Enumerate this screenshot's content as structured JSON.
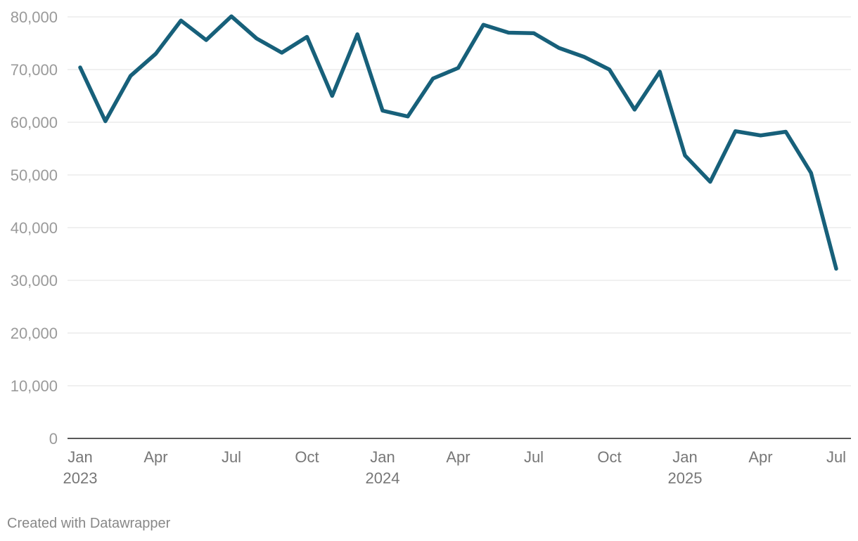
{
  "chart_data": {
    "type": "line",
    "title": "",
    "xlabel": "",
    "ylabel": "",
    "ylim": [
      0,
      80000
    ],
    "yticks": [
      0,
      10000,
      20000,
      30000,
      40000,
      50000,
      60000,
      70000,
      80000
    ],
    "ytick_labels": [
      "0",
      "10,000",
      "20,000",
      "30,000",
      "40,000",
      "50,000",
      "60,000",
      "70,000",
      "80,000"
    ],
    "xlim": [
      "2023-01",
      "2025-07"
    ],
    "xticks": [
      {
        "date": "2023-01",
        "month": "Jan",
        "year": "2023"
      },
      {
        "date": "2023-04",
        "month": "Apr",
        "year": ""
      },
      {
        "date": "2023-07",
        "month": "Jul",
        "year": ""
      },
      {
        "date": "2023-10",
        "month": "Oct",
        "year": ""
      },
      {
        "date": "2024-01",
        "month": "Jan",
        "year": "2024"
      },
      {
        "date": "2024-04",
        "month": "Apr",
        "year": ""
      },
      {
        "date": "2024-07",
        "month": "Jul",
        "year": ""
      },
      {
        "date": "2024-10",
        "month": "Oct",
        "year": ""
      },
      {
        "date": "2025-01",
        "month": "Jan",
        "year": "2025"
      },
      {
        "date": "2025-04",
        "month": "Apr",
        "year": ""
      },
      {
        "date": "2025-07",
        "month": "Jul",
        "year": ""
      }
    ],
    "grid": true,
    "legend": "none",
    "series": [
      {
        "color": "#17607a",
        "x": [
          "2023-01",
          "2023-02",
          "2023-03",
          "2023-04",
          "2023-05",
          "2023-06",
          "2023-07",
          "2023-08",
          "2023-09",
          "2023-10",
          "2023-11",
          "2023-12",
          "2024-01",
          "2024-02",
          "2024-03",
          "2024-04",
          "2024-05",
          "2024-06",
          "2024-07",
          "2024-08",
          "2024-09",
          "2024-10",
          "2024-11",
          "2024-12",
          "2025-01",
          "2025-02",
          "2025-03",
          "2025-04",
          "2025-05",
          "2025-06",
          "2025-07"
        ],
        "values": [
          70400,
          60200,
          68800,
          73000,
          79300,
          75600,
          80100,
          75900,
          73200,
          76200,
          65000,
          76700,
          62200,
          61100,
          68300,
          70300,
          78500,
          77000,
          76900,
          74100,
          72400,
          70000,
          62400,
          69600,
          53700,
          48700,
          58300,
          57500,
          58200,
          50400,
          32200
        ]
      }
    ]
  },
  "footer": {
    "credit": "Created with Datawrapper"
  }
}
